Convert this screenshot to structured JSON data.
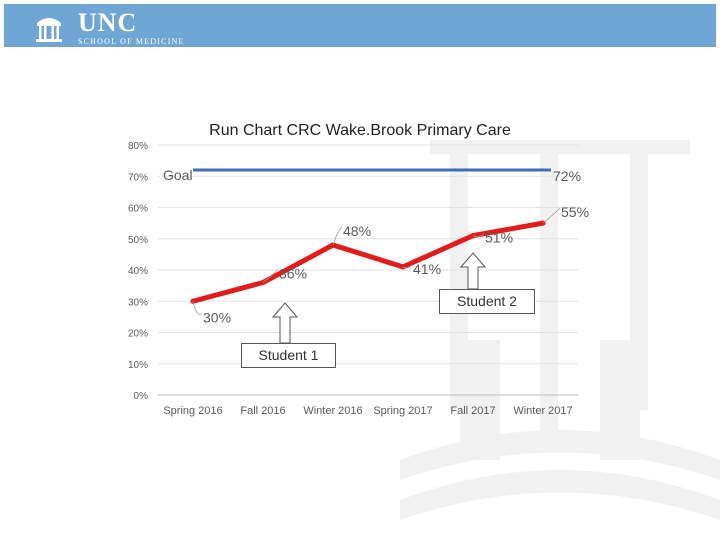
{
  "header": {
    "logo_primary": "UNC",
    "logo_secondary": "SCHOOL OF MEDICINE",
    "bar_color": "#6fa6d6",
    "logo_icon": "old-well-icon"
  },
  "chart_data": {
    "type": "line",
    "title": "Run Chart CRC Wake.Brook Primary Care",
    "xlabel": "",
    "ylabel": "",
    "categories": [
      "Spring 2016",
      "Fall 2016",
      "Winter 2016",
      "Spring 2017",
      "Fall 2017",
      "Winter 2017"
    ],
    "series": [
      {
        "values": [
          30,
          36,
          48,
          41,
          51,
          55
        ],
        "color": "#e31b1b"
      }
    ],
    "data_labels": [
      "30%",
      "36%",
      "48%",
      "41%",
      "51%",
      "55%"
    ],
    "ylim": [
      0,
      80
    ],
    "yticks": [
      "0%",
      "10%",
      "20%",
      "30%",
      "40%",
      "50%",
      "60%",
      "70%",
      "80%"
    ],
    "grid": true,
    "goal": {
      "label": "Goal",
      "value": 72,
      "value_label": "72%",
      "color": "#3f6db3"
    },
    "annotations": [
      {
        "text": "Student 1",
        "points_to": "Fall 2016"
      },
      {
        "text": "Student 2",
        "points_to": "Fall 2017"
      }
    ]
  }
}
